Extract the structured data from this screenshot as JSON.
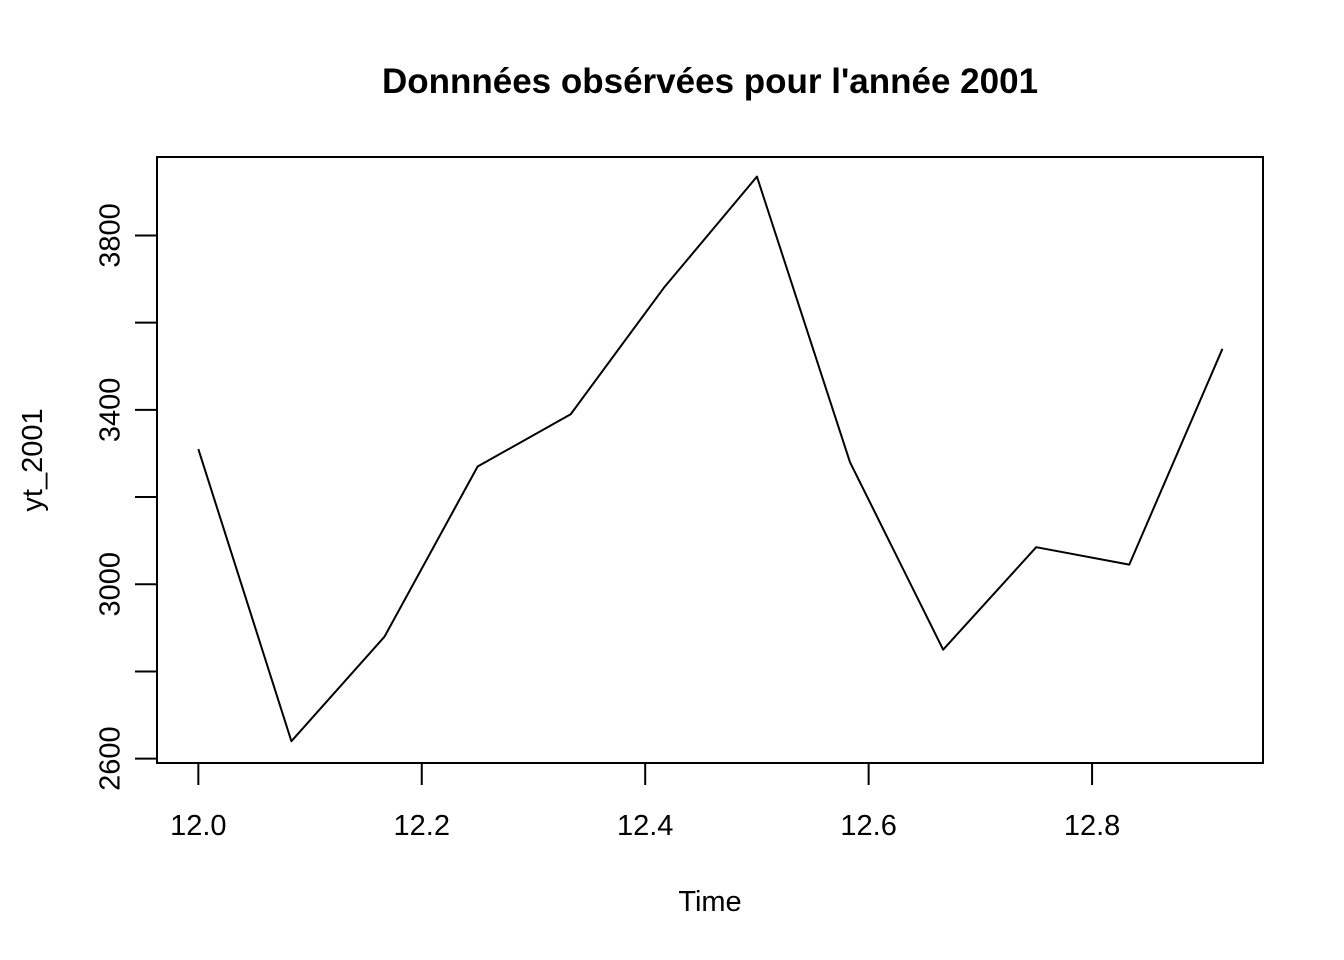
{
  "chart_data": {
    "type": "line",
    "title": "Donnnées obsérvées pour l'année 2001",
    "xlabel": "Time",
    "ylabel": "yt_2001",
    "xlim": [
      11.963,
      12.953
    ],
    "ylim": [
      2590,
      3980
    ],
    "x_ticks": [
      12.0,
      12.2,
      12.4,
      12.6,
      12.8
    ],
    "x_tick_labels": [
      "12.0",
      "12.2",
      "12.4",
      "12.6",
      "12.8"
    ],
    "y_ticks": [
      2600,
      2800,
      3000,
      3200,
      3400,
      3600,
      3800
    ],
    "y_tick_labels": [
      "2600",
      "",
      "3000",
      "",
      "3400",
      "",
      "3800"
    ],
    "grid": false,
    "legend": "none",
    "series": [
      {
        "x": [
          12.0,
          12.0833,
          12.1667,
          12.25,
          12.3333,
          12.4167,
          12.5,
          12.5833,
          12.6667,
          12.75,
          12.8333,
          12.9167
        ],
        "values": [
          3310,
          2640,
          2880,
          3270,
          3390,
          3680,
          3935,
          3280,
          2850,
          3085,
          3045,
          3540
        ]
      }
    ],
    "colors": {
      "line": "#000000",
      "axis": "#000000",
      "background": "#ffffff"
    }
  }
}
